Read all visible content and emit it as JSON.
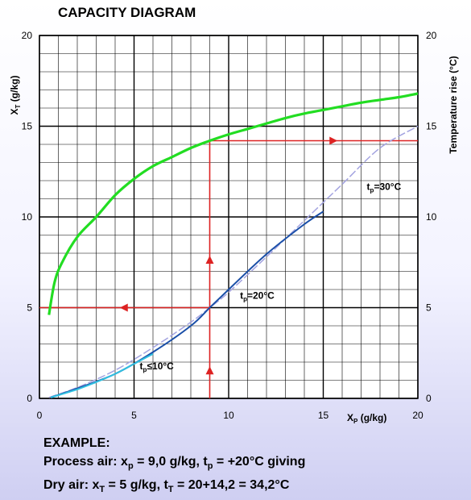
{
  "title": "CAPACITY DIAGRAM",
  "axes": {
    "ylabel_left": "X",
    "ylabel_left_sub": "T",
    "ylabel_left_unit": " (g/kg)",
    "ylabel_right": "Temperature rise (°C)",
    "xlabel": "X",
    "xlabel_sub": "P",
    "xlabel_unit": " (g/kg)"
  },
  "example": {
    "heading": "EXAMPLE:",
    "line1": {
      "pre": "Process air: x",
      "sub1": "p",
      "mid": " = 9,0 g/kg, t",
      "sub2": "p",
      "post": " = +20°C giving"
    },
    "line2": {
      "pre": "Dry air: x",
      "sub1": "T",
      "mid": " = 5 g/kg, t",
      "sub2": "T",
      "post": " = 20+14,2 = 34,2°C"
    }
  },
  "chart_data": {
    "type": "line",
    "title": "CAPACITY DIAGRAM",
    "xlabel": "XP (g/kg)",
    "ylabel": "XT (g/kg)",
    "ylabel_right": "Temperature rise (°C)",
    "xlim": [
      0,
      20
    ],
    "ylim": [
      0,
      20
    ],
    "ylim_right": [
      0,
      20
    ],
    "xticks": [
      0,
      5,
      10,
      15,
      20
    ],
    "yticks": [
      0,
      5,
      10,
      15,
      20
    ],
    "grid": true,
    "grid_step": 1,
    "series": [
      {
        "name": "tp=30°C",
        "label_main": "t",
        "label_sub": "p",
        "label_post": "=30°C",
        "label_at": [
          17.3,
          11.5
        ],
        "color": "#a3a3e0",
        "dash": true,
        "x": [
          0.5,
          2,
          4,
          6,
          8,
          9,
          10,
          12,
          14,
          16,
          18,
          20
        ],
        "y": [
          0.05,
          0.6,
          1.55,
          2.8,
          4.2,
          5.0,
          5.85,
          7.8,
          9.8,
          11.8,
          13.8,
          15.0
        ]
      },
      {
        "name": "tp=20°C",
        "label_main": "t",
        "label_sub": "p",
        "label_post": "=20°C",
        "label_at": [
          10.6,
          5.5
        ],
        "color": "#1a4fa8",
        "dash": false,
        "x": [
          0.6,
          2,
          4,
          6,
          8,
          9,
          10,
          12,
          14,
          15
        ],
        "y": [
          0.05,
          0.55,
          1.35,
          2.55,
          4.0,
          5.0,
          6.0,
          7.95,
          9.6,
          10.3
        ]
      },
      {
        "name": "tp≤10°C",
        "label_main": "t",
        "label_sub": "p",
        "label_post": "≤10°C",
        "label_at": [
          5.3,
          1.6
        ],
        "color": "#2fc0e0",
        "dash": false,
        "x": [
          0.6,
          2,
          3,
          4,
          5,
          6
        ],
        "y": [
          0.05,
          0.5,
          0.9,
          1.35,
          1.9,
          2.45
        ]
      },
      {
        "name": "Temperature rise",
        "color": "#22dd22",
        "dash": false,
        "x": [
          0.5,
          0.8,
          1.2,
          2,
          3,
          4,
          5,
          6,
          7,
          8,
          9,
          10,
          11,
          12,
          13,
          14,
          15,
          16,
          17,
          18,
          19,
          20
        ],
        "y": [
          4.6,
          6.4,
          7.5,
          8.9,
          10.0,
          11.2,
          12.1,
          12.8,
          13.3,
          13.8,
          14.2,
          14.55,
          14.85,
          15.15,
          15.45,
          15.7,
          15.9,
          16.1,
          16.3,
          16.45,
          16.6,
          16.8
        ]
      }
    ],
    "example_lines": {
      "color": "#dd2222",
      "vertical": {
        "x": 9,
        "y_from": 0,
        "y_to": 14.2,
        "arrow_marks_y": [
          1.5,
          7.6
        ]
      },
      "left": {
        "y": 5,
        "x_from": 0,
        "x_to": 9,
        "arrow_mark_x": 4.5
      },
      "right": {
        "y": 14.2,
        "x_from": 9,
        "x_to": 20,
        "arrow_mark_x": 15.5
      }
    }
  }
}
